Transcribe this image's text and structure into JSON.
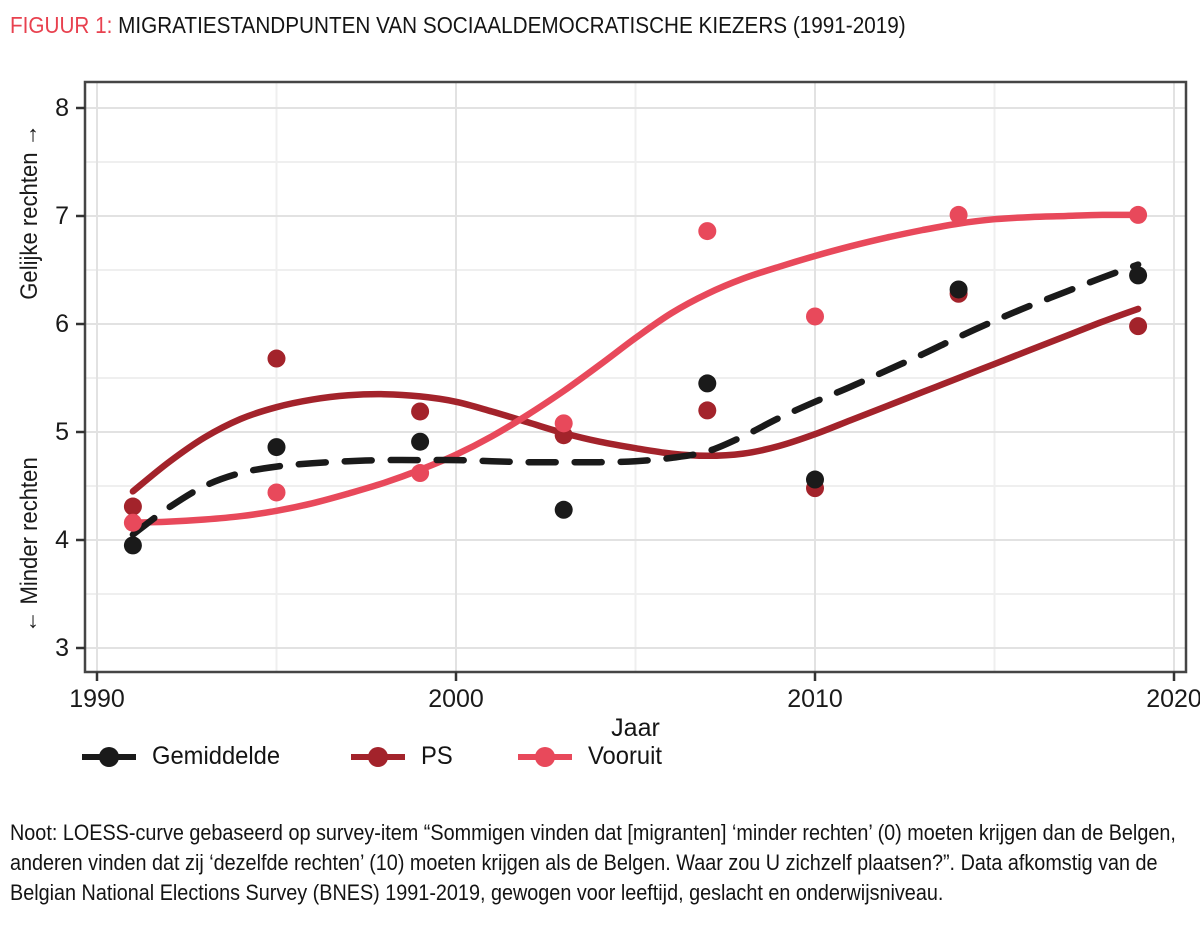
{
  "figure": {
    "label": "FIGUUR 1:",
    "title": "MIGRATIESTANDPUNTEN VAN SOCIAALDEMOCRATISCHE KIEZERS (1991-2019)",
    "label_color": "#E8414F"
  },
  "axes": {
    "y_top_label": "Gelijke rechten →",
    "y_bottom_label": "← Minder rechten",
    "x_label": "Jaar"
  },
  "chart_data": {
    "type": "scatter",
    "title": "Migratiestandpunten van sociaaldemocratische kiezers (1991-2019)",
    "xlabel": "Jaar",
    "ylabel_top": "Gelijke rechten",
    "ylabel_bottom": "Minder rechten",
    "xlim": [
      1989.7,
      2020.3
    ],
    "ylim": [
      2.78,
      8.24
    ],
    "x_major_ticks": [
      1990,
      2000,
      2010,
      2020
    ],
    "x_minor_gridlines": [
      1995,
      2005,
      2015
    ],
    "y_major_ticks": [
      8,
      7,
      6,
      5,
      4,
      3
    ],
    "y_minor_gridlines": [
      3.5,
      4.5,
      5.5,
      6.5,
      7.5
    ],
    "grid": "major and minor gridlines, light gray on white panel",
    "legend_position": "bottom-left",
    "smoother": "LOESS",
    "survey_years": [
      1991,
      1995,
      1999,
      2003,
      2007,
      2010,
      2014,
      2019
    ],
    "series": [
      {
        "name": "Gemiddelde",
        "color": "#1A1A1A",
        "line_style": "dashed",
        "points": {
          "x": [
            1991,
            1995,
            1999,
            2003,
            2007,
            2010,
            2014,
            2019
          ],
          "y": [
            3.95,
            4.86,
            4.91,
            4.28,
            5.45,
            4.56,
            6.32,
            6.45
          ]
        },
        "loess": {
          "x": [
            1991,
            1992,
            1993,
            1994,
            1995,
            1996,
            1997,
            1998,
            1999,
            2000,
            2001,
            2002,
            2003,
            2004,
            2005,
            2006,
            2007,
            2008,
            2009,
            2010,
            2011,
            2012,
            2013,
            2014,
            2015,
            2016,
            2017,
            2018,
            2019
          ],
          "y": [
            4.05,
            4.3,
            4.5,
            4.62,
            4.68,
            4.71,
            4.73,
            4.74,
            4.74,
            4.74,
            4.73,
            4.72,
            4.72,
            4.72,
            4.73,
            4.76,
            4.82,
            4.96,
            5.13,
            5.28,
            5.42,
            5.57,
            5.72,
            5.88,
            6.03,
            6.17,
            6.3,
            6.43,
            6.55
          ]
        }
      },
      {
        "name": "PS",
        "color": "#A3232B",
        "line_style": "solid",
        "points": {
          "x": [
            1991,
            1995,
            1999,
            2003,
            2007,
            2010,
            2014,
            2019
          ],
          "y": [
            4.31,
            5.68,
            5.19,
            4.97,
            5.2,
            4.48,
            6.28,
            5.98
          ]
        },
        "loess": {
          "x": [
            1991,
            1992,
            1993,
            1994,
            1995,
            1996,
            1997,
            1998,
            1999,
            2000,
            2001,
            2002,
            2003,
            2004,
            2005,
            2006,
            2007,
            2008,
            2009,
            2010,
            2011,
            2012,
            2013,
            2014,
            2015,
            2016,
            2017,
            2018,
            2019
          ],
          "y": [
            4.45,
            4.72,
            4.95,
            5.12,
            5.23,
            5.3,
            5.34,
            5.35,
            5.33,
            5.28,
            5.19,
            5.09,
            4.99,
            4.91,
            4.85,
            4.8,
            4.78,
            4.8,
            4.87,
            4.98,
            5.11,
            5.24,
            5.37,
            5.5,
            5.63,
            5.76,
            5.89,
            6.02,
            6.14
          ]
        }
      },
      {
        "name": "Vooruit",
        "color": "#E8495B",
        "line_style": "solid",
        "points": {
          "x": [
            1991,
            1995,
            1999,
            2003,
            2007,
            2010,
            2014,
            2019
          ],
          "y": [
            4.16,
            4.44,
            4.62,
            5.08,
            6.86,
            6.07,
            7.01,
            7.01
          ]
        },
        "loess": {
          "x": [
            1991,
            1992,
            1993,
            1994,
            1995,
            1996,
            1997,
            1998,
            1999,
            2000,
            2001,
            2002,
            2003,
            2004,
            2005,
            2006,
            2007,
            2008,
            2009,
            2010,
            2011,
            2012,
            2013,
            2014,
            2015,
            2016,
            2017,
            2018,
            2019
          ],
          "y": [
            4.16,
            4.17,
            4.19,
            4.22,
            4.27,
            4.34,
            4.43,
            4.53,
            4.65,
            4.79,
            4.96,
            5.16,
            5.38,
            5.62,
            5.87,
            6.1,
            6.28,
            6.42,
            6.53,
            6.63,
            6.72,
            6.8,
            6.87,
            6.93,
            6.97,
            6.99,
            7.0,
            7.01,
            7.01
          ]
        }
      }
    ],
    "style": {
      "panel_border_color": "#454545",
      "major_grid_color": "#E2E2E2",
      "minor_grid_color": "#EFEFEF",
      "tick_color": "#333333",
      "point_radius": 9,
      "line_width": 6.5
    }
  },
  "note": {
    "text": "Noot: LOESS-curve gebaseerd op survey-item “Sommigen vinden dat [migranten] ‘minder rechten’ (0) moeten krijgen dan de Belgen, anderen vinden dat zij ‘dezelfde rechten’ (10) moeten krijgen als de Belgen. Waar zou U zichzelf plaatsen?”. Data afkomstig van de Belgian National Elections Survey (BNES) 1991-2019, gewogen voor leeftijd, geslacht en onderwijsniveau."
  }
}
